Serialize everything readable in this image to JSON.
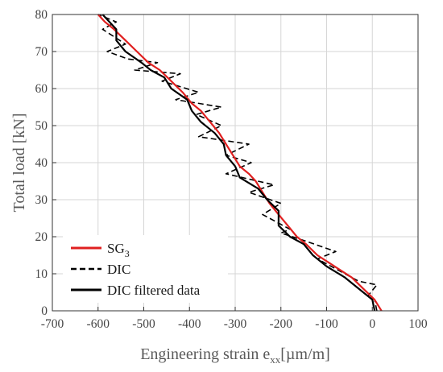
{
  "chart_data": {
    "type": "line",
    "xlabel": "Engineering strain e",
    "xlabel_sub": "xx",
    "xlabel_unit": "[µm/m]",
    "ylabel": "Total load [kN]",
    "xlim": [
      -700,
      100
    ],
    "ylim": [
      0,
      80
    ],
    "xticks": [
      -700,
      -600,
      -500,
      -400,
      -300,
      -200,
      -100,
      0,
      100
    ],
    "yticks": [
      0,
      10,
      20,
      30,
      40,
      50,
      60,
      70,
      80
    ],
    "grid": true,
    "legend_position": "bottom-left",
    "series": [
      {
        "name": "SG",
        "name_sub": "3",
        "color": "#e02020",
        "dash": "solid",
        "points": [
          [
            20,
            0
          ],
          [
            15,
            1
          ],
          [
            5,
            3
          ],
          [
            -20,
            6
          ],
          [
            -45,
            9
          ],
          [
            -70,
            11
          ],
          [
            -95,
            13
          ],
          [
            -120,
            15
          ],
          [
            -145,
            18
          ],
          [
            -165,
            20
          ],
          [
            -185,
            23
          ],
          [
            -205,
            26
          ],
          [
            -225,
            29
          ],
          [
            -240,
            32
          ],
          [
            -255,
            35
          ],
          [
            -270,
            37
          ],
          [
            -290,
            39
          ],
          [
            -305,
            42
          ],
          [
            -320,
            45
          ],
          [
            -335,
            48
          ],
          [
            -355,
            51
          ],
          [
            -375,
            54
          ],
          [
            -395,
            56
          ],
          [
            -415,
            59
          ],
          [
            -440,
            62
          ],
          [
            -465,
            65
          ],
          [
            -490,
            67
          ],
          [
            -515,
            70
          ],
          [
            -540,
            73
          ],
          [
            -565,
            76
          ],
          [
            -585,
            78
          ],
          [
            -600,
            80
          ]
        ]
      },
      {
        "name": "DIC",
        "color": "#000000",
        "dash": "dashed",
        "points": [
          [
            10,
            0
          ],
          [
            5,
            3
          ],
          [
            -10,
            4
          ],
          [
            10,
            7
          ],
          [
            -30,
            8
          ],
          [
            -90,
            12
          ],
          [
            -120,
            14
          ],
          [
            -80,
            16
          ],
          [
            -150,
            19
          ],
          [
            -200,
            21
          ],
          [
            -180,
            22
          ],
          [
            -240,
            26
          ],
          [
            -200,
            29
          ],
          [
            -270,
            32
          ],
          [
            -215,
            34
          ],
          [
            -320,
            37
          ],
          [
            -265,
            40
          ],
          [
            -320,
            42
          ],
          [
            -270,
            45
          ],
          [
            -380,
            47
          ],
          [
            -330,
            50
          ],
          [
            -385,
            53
          ],
          [
            -330,
            55
          ],
          [
            -430,
            57
          ],
          [
            -380,
            59
          ],
          [
            -460,
            62
          ],
          [
            -420,
            64
          ],
          [
            -520,
            65
          ],
          [
            -470,
            67
          ],
          [
            -535,
            68
          ],
          [
            -580,
            70
          ],
          [
            -540,
            72
          ],
          [
            -590,
            76
          ],
          [
            -560,
            78
          ],
          [
            -600,
            80
          ]
        ]
      },
      {
        "name": "DIC filtered data",
        "color": "#000000",
        "dash": "solid",
        "points": [
          [
            5,
            0
          ],
          [
            0,
            3
          ],
          [
            -20,
            5
          ],
          [
            -60,
            9
          ],
          [
            -100,
            12
          ],
          [
            -130,
            15
          ],
          [
            -150,
            18
          ],
          [
            -180,
            20
          ],
          [
            -205,
            23
          ],
          [
            -205,
            27
          ],
          [
            -230,
            30
          ],
          [
            -250,
            33
          ],
          [
            -290,
            36
          ],
          [
            -300,
            39
          ],
          [
            -320,
            42
          ],
          [
            -325,
            45
          ],
          [
            -345,
            48
          ],
          [
            -375,
            51
          ],
          [
            -395,
            54
          ],
          [
            -405,
            57
          ],
          [
            -440,
            60
          ],
          [
            -455,
            63
          ],
          [
            -485,
            65
          ],
          [
            -505,
            67
          ],
          [
            -540,
            70
          ],
          [
            -560,
            73
          ],
          [
            -560,
            76
          ],
          [
            -575,
            78
          ],
          [
            -590,
            80
          ]
        ]
      }
    ]
  }
}
